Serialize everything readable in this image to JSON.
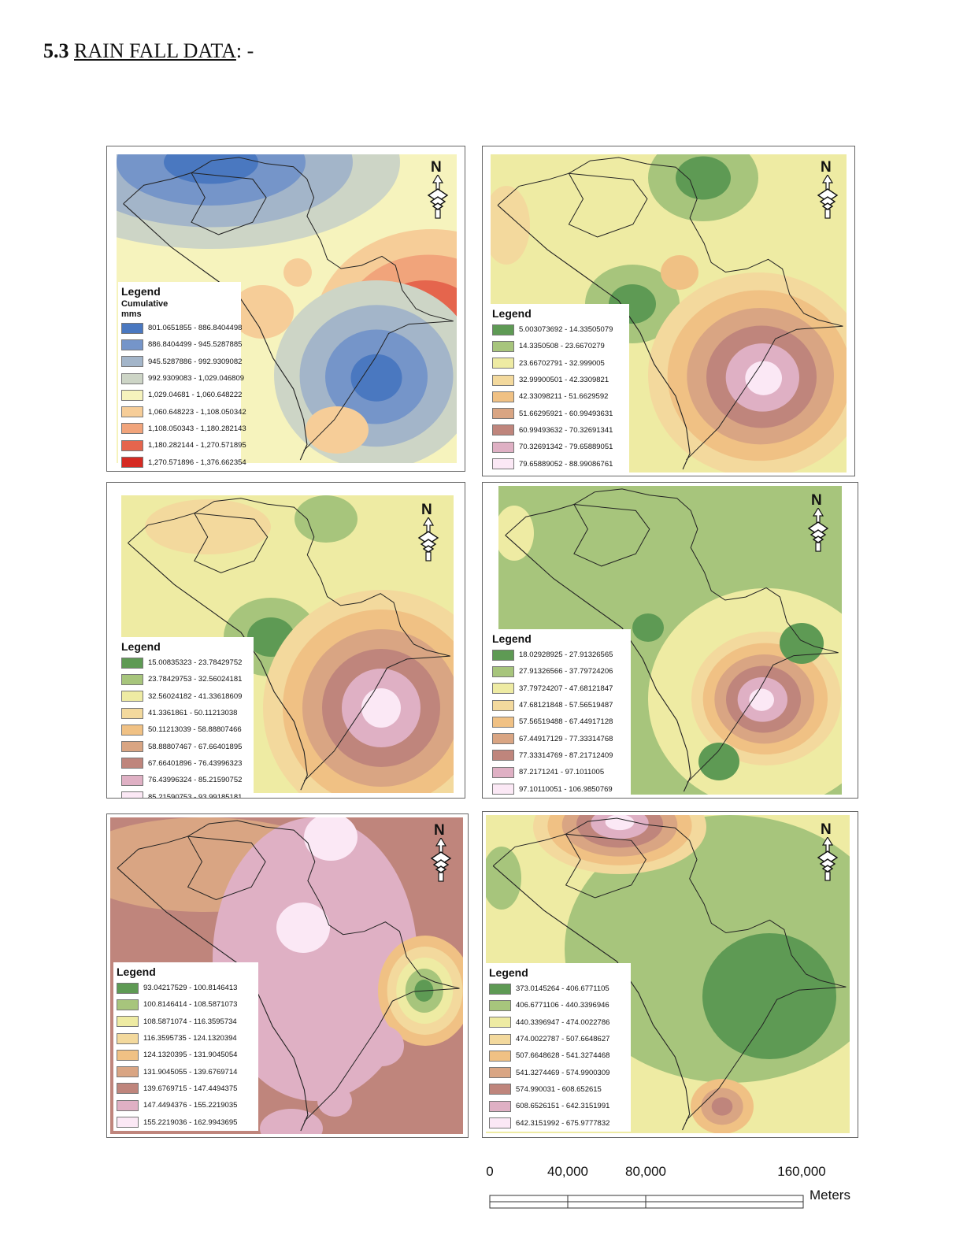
{
  "heading": {
    "number": "5.3",
    "title": "RAIN FALL DATA",
    "suffix": ": -"
  },
  "maps": [
    {
      "legend": {
        "title": "Legend",
        "subtitle_lines": [
          "Cumulative",
          "mms"
        ],
        "classes": [
          {
            "label": "801.0651855 - 886.8404498",
            "color": "#4a78c0"
          },
          {
            "label": "886.8404499 - 945.5287885",
            "color": "#7595c9"
          },
          {
            "label": "945.5287886 - 992.9309082",
            "color": "#a3b5c9"
          },
          {
            "label": "992.9309083 - 1,029.046809",
            "color": "#cdd5c6"
          },
          {
            "label": "1,029.04681 - 1,060.648222",
            "color": "#f6f3bd"
          },
          {
            "label": "1,060.648223 - 1,108.050342",
            "color": "#f6cd98"
          },
          {
            "label": "1,108.050343 - 1,180.282143",
            "color": "#f1a47b"
          },
          {
            "label": "1,180.282144 - 1,270.571895",
            "color": "#e5654d"
          },
          {
            "label": "1,270.571896 - 1,376.662354",
            "color": "#d52a22"
          }
        ]
      }
    },
    {
      "legend": {
        "title": "Legend",
        "subtitle_lines": [],
        "classes": [
          {
            "label": "5.003073692 - 14.33505079",
            "color": "#5e9a54"
          },
          {
            "label": "14.3350508 - 23.6670279",
            "color": "#a7c57c"
          },
          {
            "label": "23.66702791 - 32.999005",
            "color": "#eeeba3"
          },
          {
            "label": "32.99900501 - 42.3309821",
            "color": "#f3d99d"
          },
          {
            "label": "42.33098211 - 51.6629592",
            "color": "#f0c184"
          },
          {
            "label": "51.66295921 - 60.99493631",
            "color": "#d9a583"
          },
          {
            "label": "60.99493632 - 70.32691341",
            "color": "#bf857c"
          },
          {
            "label": "70.32691342 - 79.65889051",
            "color": "#dfb0c4"
          },
          {
            "label": "79.65889052 - 88.99086761",
            "color": "#fbe8f5"
          }
        ]
      }
    },
    {
      "legend": {
        "title": "Legend",
        "subtitle_lines": [],
        "classes": [
          {
            "label": "15.00835323 - 23.78429752",
            "color": "#5e9a54"
          },
          {
            "label": "23.78429753 - 32.56024181",
            "color": "#a7c57c"
          },
          {
            "label": "32.56024182 - 41.33618609",
            "color": "#eeeba3"
          },
          {
            "label": "41.3361861 - 50.11213038",
            "color": "#f3d99d"
          },
          {
            "label": "50.11213039 - 58.88807466",
            "color": "#f0c184"
          },
          {
            "label": "58.88807467 - 67.66401895",
            "color": "#d9a583"
          },
          {
            "label": "67.66401896 - 76.43996323",
            "color": "#bf857c"
          },
          {
            "label": "76.43996324 - 85.21590752",
            "color": "#dfb0c4"
          },
          {
            "label": "85.21590753 - 93.99185181",
            "color": "#fbe8f5"
          }
        ]
      }
    },
    {
      "legend": {
        "title": "Legend",
        "subtitle_lines": [],
        "classes": [
          {
            "label": "18.02928925 - 27.91326565",
            "color": "#5e9a54"
          },
          {
            "label": "27.91326566 - 37.79724206",
            "color": "#a7c57c"
          },
          {
            "label": "37.79724207 - 47.68121847",
            "color": "#eeeba3"
          },
          {
            "label": "47.68121848 - 57.56519487",
            "color": "#f3d99d"
          },
          {
            "label": "57.56519488 - 67.44917128",
            "color": "#f0c184"
          },
          {
            "label": "67.44917129 - 77.33314768",
            "color": "#d9a583"
          },
          {
            "label": "77.33314769 - 87.21712409",
            "color": "#bf857c"
          },
          {
            "label": "87.2171241 - 97.1011005",
            "color": "#dfb0c4"
          },
          {
            "label": "97.10110051 - 106.9850769",
            "color": "#fbe8f5"
          }
        ]
      }
    },
    {
      "legend": {
        "title": "Legend",
        "subtitle_lines": [],
        "classes": [
          {
            "label": "93.04217529 - 100.8146413",
            "color": "#5e9a54"
          },
          {
            "label": "100.8146414 - 108.5871073",
            "color": "#a7c57c"
          },
          {
            "label": "108.5871074 - 116.3595734",
            "color": "#eeeba3"
          },
          {
            "label": "116.3595735 - 124.1320394",
            "color": "#f3d99d"
          },
          {
            "label": "124.1320395 - 131.9045054",
            "color": "#f0c184"
          },
          {
            "label": "131.9045055 - 139.6769714",
            "color": "#d9a583"
          },
          {
            "label": "139.6769715 - 147.4494375",
            "color": "#bf857c"
          },
          {
            "label": "147.4494376 - 155.2219035",
            "color": "#dfb0c4"
          },
          {
            "label": "155.2219036 - 162.9943695",
            "color": "#fbe8f5"
          }
        ]
      }
    },
    {
      "legend": {
        "title": "Legend",
        "subtitle_lines": [],
        "classes": [
          {
            "label": "373.0145264 - 406.6771105",
            "color": "#5e9a54"
          },
          {
            "label": "406.6771106 - 440.3396946",
            "color": "#a7c57c"
          },
          {
            "label": "440.3396947 - 474.0022786",
            "color": "#eeeba3"
          },
          {
            "label": "474.0022787 - 507.6648627",
            "color": "#f3d99d"
          },
          {
            "label": "507.6648628 - 541.3274468",
            "color": "#f0c184"
          },
          {
            "label": "541.3274469 - 574.9900309",
            "color": "#d9a583"
          },
          {
            "label": "574.990031 - 608.652615",
            "color": "#bf857c"
          },
          {
            "label": "608.6526151 - 642.3151991",
            "color": "#dfb0c4"
          },
          {
            "label": "642.3151992 - 675.9777832",
            "color": "#fbe8f5"
          }
        ]
      }
    }
  ],
  "north_arrow": {
    "letter": "N",
    "icon": "north-arrow-icon"
  },
  "scale_bar": {
    "ticks": [
      "0",
      "40,000",
      "80,000",
      "160,000"
    ],
    "units": "Meters"
  }
}
